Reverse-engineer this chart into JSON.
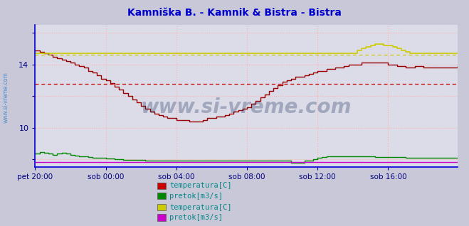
{
  "title": "Kamniška B. - Kamnik & Bistra - Bistra",
  "title_color": "#0000cc",
  "background_color": "#c8c8d8",
  "plot_bg_color": "#dcdce8",
  "grid_color": "#ffb0b0",
  "grid_style": ":",
  "xlim": [
    0,
    287
  ],
  "ylim": [
    7.5,
    16.5
  ],
  "ytick_positions": [
    8,
    10,
    12,
    14,
    16
  ],
  "ytick_labels": [
    "",
    "10",
    "",
    "14",
    ""
  ],
  "xlabel_ticks": [
    0,
    48,
    96,
    144,
    192,
    240
  ],
  "xlabel_labels": [
    "pet 20:00",
    "sob 00:00",
    "sob 04:00",
    "sob 08:00",
    "sob 12:00",
    "sob 16:00"
  ],
  "watermark": "www.si-vreme.com",
  "watermark_color": "#1a3060",
  "watermark_alpha": 0.3,
  "legend_items": [
    {
      "label": "temperatura[C]",
      "color": "#cc0000"
    },
    {
      "label": "pretok[m3/s]",
      "color": "#008800"
    },
    {
      "label": "temperatura[C]",
      "color": "#cccc00"
    },
    {
      "label": "pretok[m3/s]",
      "color": "#cc00cc"
    }
  ],
  "avg_line_red": {
    "y": 12.75,
    "color": "#cc0000",
    "style": "--"
  },
  "avg_line_yellow": {
    "y": 14.6,
    "color": "#cccc00",
    "style": "--"
  },
  "left_border_color": "#0000dd",
  "bottom_border_color": "#0000dd",
  "series": {
    "temp_kamnik": {
      "color": "#990000",
      "lw": 1.0,
      "drawstyle": "steps-post",
      "data_x": [
        0,
        3,
        6,
        9,
        12,
        15,
        18,
        21,
        24,
        27,
        30,
        33,
        36,
        39,
        42,
        45,
        48,
        51,
        54,
        57,
        60,
        63,
        66,
        69,
        72,
        75,
        78,
        81,
        84,
        87,
        90,
        93,
        96,
        99,
        102,
        105,
        108,
        111,
        114,
        117,
        120,
        123,
        126,
        129,
        132,
        135,
        138,
        141,
        144,
        147,
        150,
        153,
        156,
        159,
        162,
        165,
        168,
        171,
        174,
        177,
        180,
        183,
        186,
        189,
        192,
        195,
        198,
        201,
        204,
        207,
        210,
        213,
        216,
        219,
        222,
        225,
        228,
        231,
        234,
        237,
        240,
        243,
        246,
        249,
        252,
        255,
        258,
        261,
        264,
        267,
        270,
        273,
        276,
        279,
        282,
        285,
        287
      ],
      "data_y": [
        14.9,
        14.8,
        14.7,
        14.6,
        14.5,
        14.4,
        14.3,
        14.2,
        14.1,
        14.0,
        13.9,
        13.8,
        13.6,
        13.5,
        13.3,
        13.1,
        13.0,
        12.8,
        12.6,
        12.4,
        12.2,
        12.0,
        11.8,
        11.6,
        11.4,
        11.2,
        11.0,
        10.9,
        10.8,
        10.7,
        10.6,
        10.6,
        10.5,
        10.5,
        10.5,
        10.4,
        10.4,
        10.4,
        10.5,
        10.6,
        10.6,
        10.7,
        10.7,
        10.8,
        10.9,
        11.0,
        11.1,
        11.2,
        11.3,
        11.5,
        11.7,
        11.9,
        12.1,
        12.3,
        12.5,
        12.7,
        12.9,
        13.0,
        13.1,
        13.2,
        13.2,
        13.3,
        13.4,
        13.5,
        13.6,
        13.6,
        13.7,
        13.7,
        13.8,
        13.8,
        13.9,
        14.0,
        14.0,
        14.0,
        14.1,
        14.1,
        14.1,
        14.1,
        14.1,
        14.1,
        14.0,
        14.0,
        13.9,
        13.9,
        13.8,
        13.8,
        13.9,
        13.9,
        13.8,
        13.8,
        13.8,
        13.8,
        13.8,
        13.8,
        13.8,
        13.8,
        13.9
      ]
    },
    "pretok_kamnik": {
      "color": "#008800",
      "lw": 1.0,
      "drawstyle": "steps-post",
      "data_x": [
        0,
        3,
        6,
        9,
        12,
        15,
        18,
        21,
        24,
        27,
        30,
        33,
        36,
        39,
        42,
        45,
        48,
        51,
        54,
        57,
        60,
        63,
        66,
        69,
        72,
        75,
        78,
        81,
        84,
        87,
        90,
        93,
        96,
        99,
        102,
        105,
        108,
        111,
        114,
        117,
        120,
        123,
        126,
        129,
        132,
        135,
        138,
        141,
        144,
        147,
        150,
        153,
        156,
        159,
        162,
        165,
        168,
        171,
        174,
        177,
        180,
        183,
        186,
        189,
        192,
        195,
        198,
        201,
        204,
        207,
        210,
        213,
        216,
        219,
        222,
        225,
        228,
        231,
        234,
        237,
        240,
        243,
        246,
        249,
        252,
        255,
        258,
        261,
        264,
        267,
        270,
        273,
        276,
        279,
        282,
        285,
        287
      ],
      "data_y": [
        8.35,
        8.45,
        8.4,
        8.35,
        8.3,
        8.35,
        8.4,
        8.35,
        8.3,
        8.25,
        8.2,
        8.18,
        8.15,
        8.12,
        8.1,
        8.08,
        8.06,
        8.04,
        8.02,
        8.0,
        7.98,
        7.97,
        7.96,
        7.95,
        7.95,
        7.94,
        7.94,
        7.94,
        7.93,
        7.93,
        7.93,
        7.93,
        7.93,
        7.93,
        7.93,
        7.93,
        7.93,
        7.93,
        7.93,
        7.93,
        7.93,
        7.93,
        7.93,
        7.93,
        7.93,
        7.93,
        7.93,
        7.93,
        7.93,
        7.93,
        7.93,
        7.93,
        7.93,
        7.93,
        7.93,
        7.93,
        7.93,
        7.93,
        7.8,
        7.78,
        7.78,
        7.93,
        7.93,
        8.0,
        8.1,
        8.15,
        8.18,
        8.18,
        8.18,
        8.18,
        8.18,
        8.18,
        8.2,
        8.2,
        8.2,
        8.2,
        8.18,
        8.15,
        8.15,
        8.15,
        8.15,
        8.15,
        8.13,
        8.13,
        8.12,
        8.12,
        8.12,
        8.12,
        8.12,
        8.12,
        8.12,
        8.1,
        8.1,
        8.08,
        8.08,
        8.08,
        8.1
      ]
    },
    "temp_bistra": {
      "color": "#cccc00",
      "lw": 1.2,
      "drawstyle": "steps-post",
      "data_x": [
        0,
        3,
        6,
        9,
        12,
        15,
        18,
        21,
        24,
        27,
        30,
        33,
        36,
        39,
        42,
        45,
        48,
        51,
        54,
        57,
        60,
        63,
        66,
        69,
        72,
        75,
        78,
        81,
        84,
        87,
        90,
        93,
        96,
        99,
        102,
        105,
        108,
        111,
        114,
        117,
        120,
        123,
        126,
        129,
        132,
        135,
        138,
        141,
        144,
        147,
        150,
        153,
        156,
        159,
        162,
        165,
        168,
        171,
        174,
        177,
        180,
        183,
        186,
        189,
        192,
        195,
        198,
        201,
        204,
        207,
        210,
        213,
        216,
        219,
        222,
        225,
        228,
        231,
        234,
        237,
        240,
        243,
        246,
        249,
        252,
        255,
        258,
        261,
        264,
        267,
        270,
        273,
        276,
        279,
        282,
        285,
        287
      ],
      "data_y": [
        14.7,
        14.7,
        14.7,
        14.7,
        14.7,
        14.7,
        14.7,
        14.7,
        14.7,
        14.7,
        14.7,
        14.7,
        14.7,
        14.7,
        14.7,
        14.7,
        14.7,
        14.7,
        14.7,
        14.7,
        14.7,
        14.7,
        14.7,
        14.7,
        14.7,
        14.7,
        14.7,
        14.7,
        14.7,
        14.7,
        14.7,
        14.7,
        14.7,
        14.7,
        14.7,
        14.7,
        14.7,
        14.7,
        14.7,
        14.7,
        14.7,
        14.7,
        14.7,
        14.7,
        14.7,
        14.7,
        14.7,
        14.7,
        14.7,
        14.7,
        14.7,
        14.7,
        14.7,
        14.7,
        14.7,
        14.7,
        14.7,
        14.7,
        14.7,
        14.7,
        14.7,
        14.7,
        14.7,
        14.7,
        14.7,
        14.7,
        14.7,
        14.7,
        14.7,
        14.7,
        14.7,
        14.7,
        14.7,
        14.9,
        15.0,
        15.1,
        15.2,
        15.3,
        15.3,
        15.2,
        15.2,
        15.1,
        15.0,
        14.9,
        14.8,
        14.7,
        14.7,
        14.7,
        14.7,
        14.7,
        14.7,
        14.7,
        14.7,
        14.7,
        14.7,
        14.7,
        14.7
      ]
    },
    "pretok_bistra": {
      "color": "#cc00cc",
      "lw": 1.0,
      "drawstyle": "steps-post",
      "data_x": [
        0,
        3,
        6,
        9,
        12,
        15,
        18,
        21,
        24,
        27,
        30,
        33,
        36,
        39,
        42,
        45,
        48,
        51,
        54,
        57,
        60,
        63,
        66,
        69,
        72,
        75,
        78,
        81,
        84,
        87,
        90,
        93,
        96,
        99,
        102,
        105,
        108,
        111,
        114,
        117,
        120,
        123,
        126,
        129,
        132,
        135,
        138,
        141,
        144,
        147,
        150,
        153,
        156,
        159,
        162,
        165,
        168,
        171,
        174,
        177,
        180,
        183,
        186,
        189,
        192,
        195,
        198,
        201,
        204,
        207,
        210,
        213,
        216,
        219,
        222,
        225,
        228,
        231,
        234,
        237,
        240,
        243,
        246,
        249,
        252,
        255,
        258,
        261,
        264,
        267,
        270,
        273,
        276,
        279,
        282,
        285,
        287
      ],
      "data_y": [
        7.82,
        7.82,
        7.82,
        7.82,
        7.82,
        7.82,
        7.82,
        7.82,
        7.82,
        7.82,
        7.82,
        7.82,
        7.82,
        7.82,
        7.82,
        7.82,
        7.82,
        7.82,
        7.82,
        7.82,
        7.82,
        7.82,
        7.82,
        7.82,
        7.82,
        7.82,
        7.82,
        7.82,
        7.82,
        7.82,
        7.82,
        7.82,
        7.82,
        7.82,
        7.82,
        7.82,
        7.82,
        7.82,
        7.82,
        7.82,
        7.82,
        7.82,
        7.82,
        7.82,
        7.82,
        7.82,
        7.82,
        7.82,
        7.82,
        7.82,
        7.82,
        7.82,
        7.82,
        7.82,
        7.82,
        7.82,
        7.82,
        7.82,
        7.82,
        7.82,
        7.82,
        7.82,
        7.82,
        7.82,
        7.82,
        7.82,
        7.82,
        7.82,
        7.82,
        7.82,
        7.82,
        7.82,
        7.82,
        7.82,
        7.82,
        7.82,
        7.82,
        7.82,
        7.82,
        7.82,
        7.82,
        7.82,
        7.82,
        7.82,
        7.82,
        7.82,
        7.82,
        7.82,
        7.82,
        7.82,
        7.82,
        7.82,
        7.82,
        7.82,
        7.82,
        7.82,
        7.82
      ]
    }
  }
}
